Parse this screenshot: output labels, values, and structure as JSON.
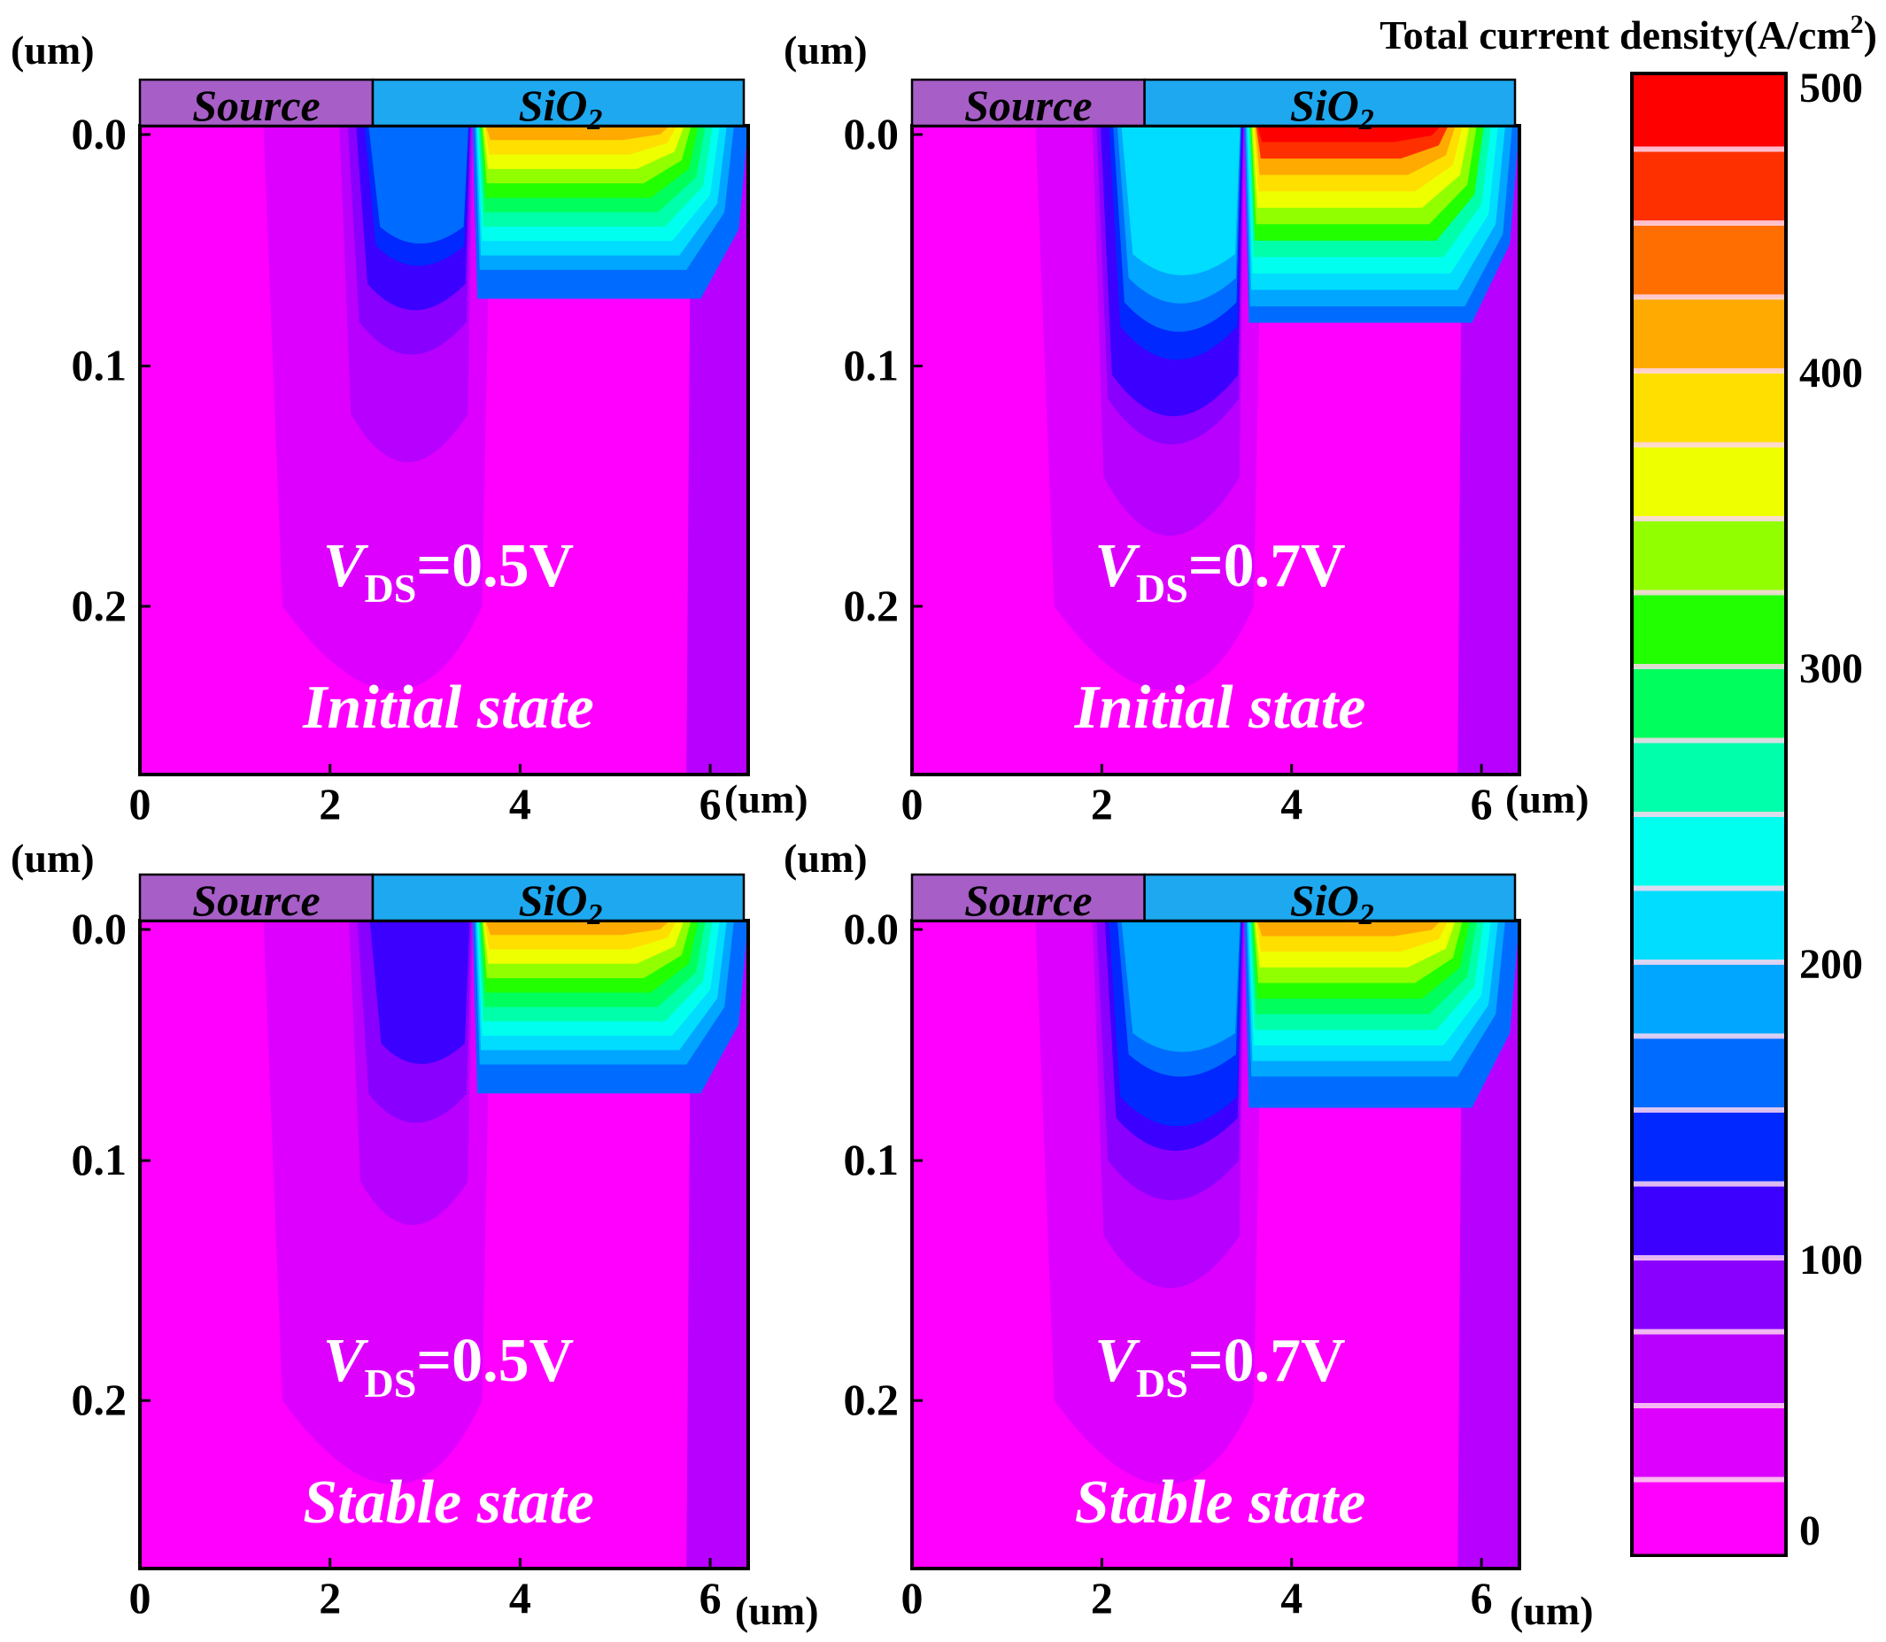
{
  "chart_data": {
    "type": "heatmap",
    "colorbar": {
      "title": "Total current density(A/cm",
      "title_sup": "2",
      "title_close": ")",
      "min": 0,
      "max": 500,
      "ticks": [
        0,
        100,
        200,
        300,
        400,
        500
      ],
      "tick_labels": [
        "0",
        "100",
        "200",
        "300",
        "400",
        "500"
      ],
      "colors": [
        "#ff00ff",
        "#dd00ff",
        "#b800ff",
        "#8a00ff",
        "#3c00ff",
        "#0028ff",
        "#006cff",
        "#00a6ff",
        "#00ddff",
        "#00ffee",
        "#00ffaa",
        "#00ff5c",
        "#22ff00",
        "#92ff00",
        "#eeff00",
        "#ffdf00",
        "#ffaa00",
        "#ff6e00",
        "#ff3000",
        "#ff0000"
      ],
      "divider_color": "#ffd7f0"
    },
    "layers": {
      "source_label": "Source",
      "oxide_label": "SiO",
      "oxide_sub": "2",
      "source_color": "#a75ec7",
      "oxide_color": "#1ea8f0"
    },
    "xlim": [
      0,
      6.4
    ],
    "ylim": [
      0,
      0.27
    ],
    "x_ticks": [
      0,
      2,
      4,
      6
    ],
    "x_tick_labels": [
      "0",
      "2",
      "4",
      "6"
    ],
    "y_ticks": [
      0.0,
      0.1,
      0.2
    ],
    "y_tick_labels": [
      "0.0",
      "0.1",
      "0.2"
    ],
    "x_unit": "(um)",
    "y_unit": "(um)",
    "panels": [
      {
        "id": "a",
        "vds_prefix": "V",
        "vds_sub": "DS",
        "vds_value": "=0.5V",
        "state": "Initial state",
        "source_end": 2.45,
        "channel_x": [
          2.1,
          3.5
        ],
        "channel_depth": 0.13,
        "drain_x": [
          3.5,
          6.4
        ],
        "drain_depth": 0.072,
        "channel_peak": 150,
        "drain_peak": 400
      },
      {
        "id": "b",
        "vds_prefix": "V",
        "vds_sub": "DS",
        "vds_value": "=0.7V",
        "state": "Initial state",
        "source_end": 2.45,
        "channel_x": [
          1.9,
          3.5
        ],
        "channel_depth": 0.165,
        "drain_x": [
          3.5,
          6.4
        ],
        "drain_depth": 0.082,
        "channel_peak": 210,
        "drain_peak": 480
      },
      {
        "id": "c",
        "vds_prefix": "V",
        "vds_sub": "DS",
        "vds_value": "=0.5V",
        "state": "Stable state",
        "source_end": 2.45,
        "channel_x": [
          2.2,
          3.5
        ],
        "channel_depth": 0.115,
        "drain_x": [
          3.5,
          6.4
        ],
        "drain_depth": 0.072,
        "channel_peak": 120,
        "drain_peak": 400
      },
      {
        "id": "d",
        "vds_prefix": "V",
        "vds_sub": "DS",
        "vds_value": "=0.7V",
        "state": "Stable state",
        "source_end": 2.45,
        "channel_x": [
          1.9,
          3.5
        ],
        "channel_depth": 0.145,
        "drain_x": [
          3.5,
          6.4
        ],
        "drain_depth": 0.078,
        "channel_peak": 180,
        "drain_peak": 410
      }
    ]
  }
}
